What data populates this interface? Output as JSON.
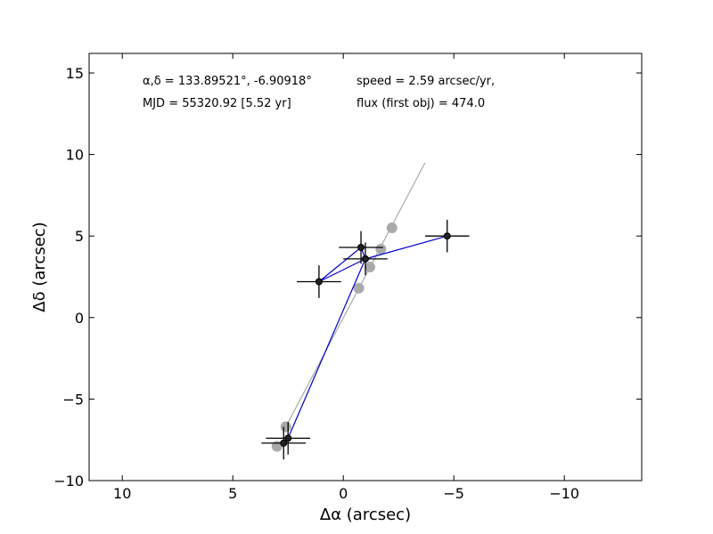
{
  "chart_data": {
    "type": "scatter",
    "xlabel": "Δα (arcsec)",
    "ylabel": "Δδ (arcsec)",
    "xlim": [
      11.5,
      -13.5
    ],
    "ylim": [
      -10,
      16.2
    ],
    "x_ticks": [
      10,
      5,
      0,
      -5,
      -10
    ],
    "x_tick_labels": [
      "10",
      "5",
      "0",
      "−5",
      "−10"
    ],
    "y_ticks": [
      -10,
      -5,
      0,
      5,
      10,
      15
    ],
    "y_tick_labels": [
      "−10",
      "−5",
      "0",
      "5",
      "10",
      "15"
    ],
    "grid": false,
    "annotations": {
      "coords": "α,δ = 133.89521°, -6.90918°",
      "mjd": "MJD = 55320.92 [5.52 yr]",
      "speed": "speed = 2.59 arcsec/yr,",
      "flux": "flux (first obj) = 474.0"
    },
    "fit_line": {
      "x": [
        2.6,
        -3.7
      ],
      "y": [
        -6.7,
        9.5
      ],
      "color": "#aaaaaa"
    },
    "model_points": {
      "color": "#aaaaaa",
      "x": [
        3.0,
        2.6,
        -0.7,
        -1.2,
        -1.7,
        -2.2
      ],
      "y": [
        -7.9,
        -6.7,
        1.8,
        3.1,
        4.2,
        5.5
      ]
    },
    "observed_points": {
      "color": "#222222",
      "marker_edge": "#000000",
      "x": [
        2.7,
        2.5,
        1.1,
        -0.8,
        -1.0,
        -4.7
      ],
      "y": [
        -7.7,
        -7.4,
        2.2,
        4.3,
        3.6,
        5.0
      ],
      "xerr": [
        1.0,
        1.0,
        1.0,
        1.0,
        1.0,
        1.0
      ],
      "yerr": [
        1.0,
        1.0,
        1.0,
        1.0,
        1.0,
        1.0
      ]
    },
    "connect_line": {
      "color": "#0000cc",
      "order_x": [
        2.7,
        2.5,
        -1.0,
        1.1,
        -0.8,
        -1.0,
        -4.7
      ],
      "order_y": [
        -7.7,
        -7.4,
        3.6,
        2.2,
        4.3,
        3.6,
        5.0
      ]
    }
  }
}
